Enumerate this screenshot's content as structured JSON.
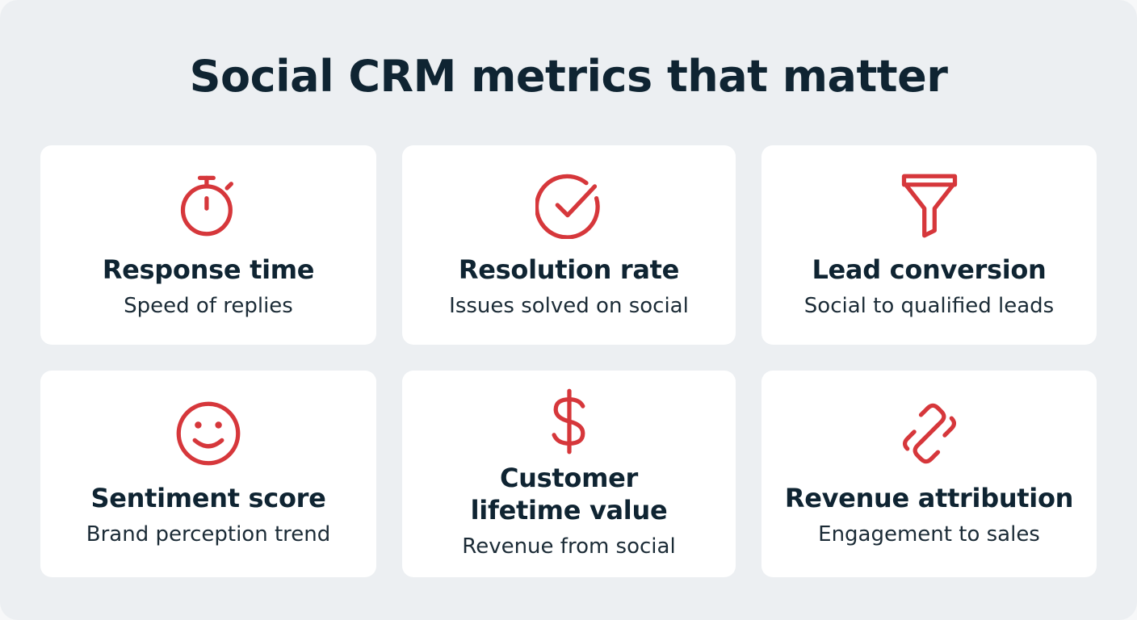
{
  "title": "Social CRM metrics that matter",
  "cards": [
    {
      "title": "Response time",
      "subtitle": "Speed of replies"
    },
    {
      "title": "Resolution rate",
      "subtitle": "Issues solved on social"
    },
    {
      "title": "Lead conversion",
      "subtitle": "Social to qualified leads"
    },
    {
      "title": "Sentiment score",
      "subtitle": "Brand perception trend"
    },
    {
      "title": "Customer lifetime value",
      "subtitle": "Revenue from social"
    },
    {
      "title": "Revenue attribution",
      "subtitle": "Engagement to sales"
    }
  ]
}
